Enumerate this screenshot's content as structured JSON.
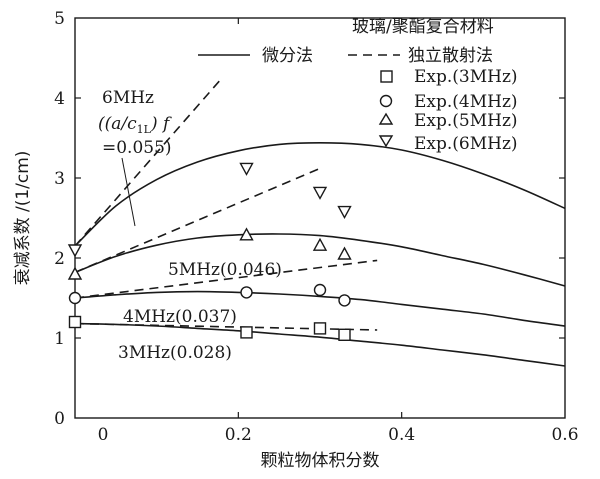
{
  "chart_data": {
    "type": "line",
    "title": "玻璃/聚酯复合材料",
    "xlabel": "颗粒物体积分数",
    "ylabel": "衰减系数 /(1/cm)",
    "xlim": [
      0,
      0.6
    ],
    "ylim": [
      0,
      5
    ],
    "x_ticks": [
      "0",
      "0.2",
      "0.4",
      "0.6"
    ],
    "y_ticks": [
      "0",
      "1",
      "2",
      "3",
      "4",
      "5"
    ],
    "legend": {
      "position": "top-right",
      "entries": {
        "solid": "微分法",
        "dashed": "独立散射法",
        "exp3": "Exp.(3MHz)",
        "exp4": "Exp.(4MHz)",
        "exp5": "Exp.(5MHz)",
        "exp6": "Exp.(6MHz)"
      }
    },
    "annotations": {
      "f6_line1": "6MHz",
      "f6_line2": "((a/c",
      "f6_sub": "1L",
      "f6_line2b": ") f",
      "f6_line3": "=0.055)",
      "f5": "5MHz(0.046)",
      "f4": "4MHz(0.037)",
      "f3": "3MHz(0.028)"
    },
    "series": [
      {
        "type": "solid",
        "freq": "6MHz",
        "x": [
          0,
          0.05,
          0.1,
          0.15,
          0.2,
          0.25,
          0.3,
          0.35,
          0.4,
          0.45,
          0.5,
          0.55,
          0.6
        ],
        "values": [
          2.15,
          2.65,
          2.98,
          3.2,
          3.34,
          3.42,
          3.44,
          3.42,
          3.35,
          3.22,
          3.05,
          2.85,
          2.62
        ]
      },
      {
        "type": "solid",
        "freq": "5MHz",
        "x": [
          0,
          0.05,
          0.1,
          0.15,
          0.2,
          0.25,
          0.3,
          0.35,
          0.4,
          0.45,
          0.5,
          0.55,
          0.6
        ],
        "values": [
          1.82,
          2.02,
          2.16,
          2.25,
          2.29,
          2.3,
          2.28,
          2.22,
          2.14,
          2.03,
          1.92,
          1.79,
          1.65
        ]
      },
      {
        "type": "solid",
        "freq": "4MHz",
        "x": [
          0,
          0.05,
          0.1,
          0.15,
          0.2,
          0.25,
          0.3,
          0.35,
          0.4,
          0.45,
          0.5,
          0.55,
          0.6
        ],
        "values": [
          1.5,
          1.54,
          1.57,
          1.58,
          1.57,
          1.55,
          1.52,
          1.48,
          1.42,
          1.36,
          1.3,
          1.22,
          1.15
        ]
      },
      {
        "type": "solid",
        "freq": "3MHz",
        "x": [
          0,
          0.05,
          0.1,
          0.15,
          0.2,
          0.25,
          0.3,
          0.35,
          0.4,
          0.45,
          0.5,
          0.55,
          0.6
        ],
        "values": [
          1.18,
          1.17,
          1.15,
          1.12,
          1.09,
          1.05,
          1.01,
          0.96,
          0.91,
          0.85,
          0.79,
          0.72,
          0.65
        ]
      },
      {
        "type": "dashed",
        "freq": "6MHz",
        "x": [
          0,
          0.18
        ],
        "values": [
          2.15,
          4.25
        ]
      },
      {
        "type": "dashed",
        "freq": "5MHz",
        "x": [
          0,
          0.3
        ],
        "values": [
          1.82,
          3.12
        ]
      },
      {
        "type": "dashed",
        "freq": "4MHz",
        "x": [
          0,
          0.37
        ],
        "values": [
          1.5,
          1.97
        ]
      },
      {
        "type": "dashed",
        "freq": "3MHz",
        "x": [
          0,
          0.37
        ],
        "values": [
          1.18,
          1.1
        ]
      }
    ],
    "points": [
      {
        "marker": "square",
        "freq": "3MHz",
        "x": [
          0,
          0.21,
          0.3,
          0.33
        ],
        "values": [
          1.2,
          1.07,
          1.12,
          1.04
        ]
      },
      {
        "marker": "circle",
        "freq": "4MHz",
        "x": [
          0,
          0.21,
          0.3,
          0.33
        ],
        "values": [
          1.5,
          1.57,
          1.6,
          1.47
        ]
      },
      {
        "marker": "triangle-up",
        "freq": "5MHz",
        "x": [
          0,
          0.21,
          0.3,
          0.33
        ],
        "values": [
          1.8,
          2.29,
          2.16,
          2.05
        ]
      },
      {
        "marker": "triangle-down",
        "freq": "6MHz",
        "x": [
          0,
          0.21,
          0.3,
          0.33
        ],
        "values": [
          2.1,
          3.12,
          2.82,
          2.58
        ]
      }
    ]
  }
}
